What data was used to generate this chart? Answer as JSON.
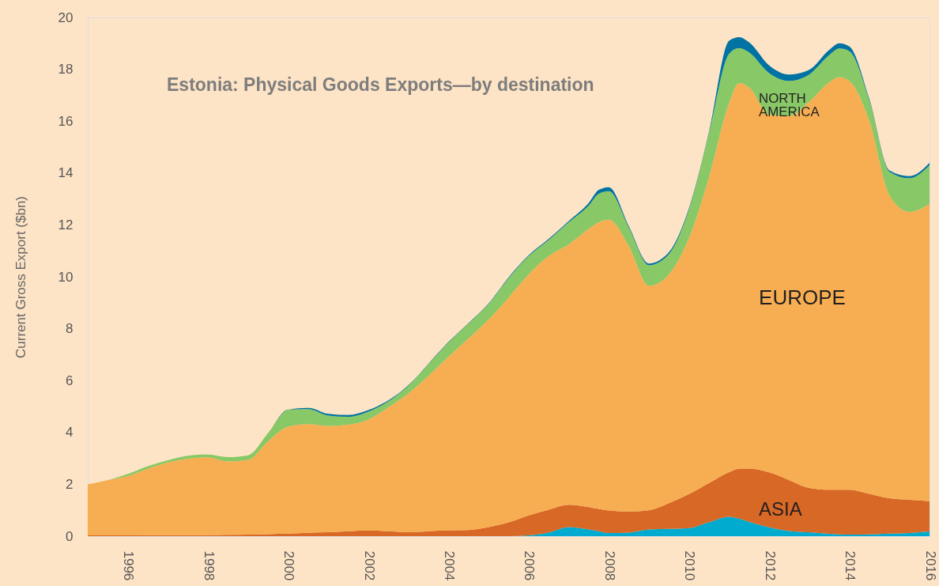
{
  "chart_data": {
    "type": "area",
    "title": "Estonia: Physical Goods Exports—by destination",
    "ylabel": "Current Gross Export ($bn)",
    "x": [
      1995,
      1995.5,
      1996,
      1996.5,
      1997,
      1997.5,
      1998,
      1998.5,
      1999,
      1999.5,
      2000,
      2000.5,
      2001,
      2001.5,
      2002,
      2002.5,
      2003,
      2003.5,
      2004,
      2004.5,
      2005,
      2005.5,
      2006,
      2006.5,
      2007,
      2007.5,
      2007.75,
      2008,
      2008.5,
      2009,
      2009.5,
      2010,
      2010.5,
      2011,
      2011.25,
      2011.5,
      2012,
      2012.5,
      2013,
      2013.5,
      2013.75,
      2014,
      2014.5,
      2015,
      2015.5,
      2016
    ],
    "xlim": [
      1995,
      2016
    ],
    "xticks": [
      1996,
      1998,
      2000,
      2002,
      2004,
      2006,
      2008,
      2010,
      2012,
      2014,
      2016
    ],
    "ylim": [
      0,
      20
    ],
    "yticks": [
      0,
      2,
      4,
      6,
      8,
      10,
      12,
      14,
      16,
      18,
      20
    ],
    "stacked": true,
    "grid": false,
    "legend": false,
    "series": [
      {
        "color": "#00abcf",
        "values": [
          0,
          0,
          0,
          0,
          0,
          0,
          0,
          0,
          0,
          0,
          0,
          0,
          0,
          0,
          0,
          0,
          0,
          0,
          0,
          0,
          0,
          0,
          0.03,
          0.14,
          0.35,
          0.26,
          0.19,
          0.12,
          0.14,
          0.26,
          0.28,
          0.31,
          0.54,
          0.75,
          0.68,
          0.56,
          0.34,
          0.2,
          0.15,
          0.09,
          0.07,
          0.06,
          0.07,
          0.1,
          0.12,
          0.18
        ]
      },
      {
        "name": "ASIA",
        "color": "#d86825",
        "values": [
          0.03,
          0.03,
          0.03,
          0.04,
          0.04,
          0.04,
          0.04,
          0.05,
          0.06,
          0.08,
          0.1,
          0.13,
          0.15,
          0.19,
          0.23,
          0.19,
          0.15,
          0.19,
          0.23,
          0.24,
          0.35,
          0.53,
          0.77,
          0.88,
          0.86,
          0.86,
          0.86,
          0.87,
          0.81,
          0.74,
          0.99,
          1.31,
          1.51,
          1.72,
          1.92,
          2.05,
          2.12,
          1.96,
          1.71,
          1.7,
          1.72,
          1.73,
          1.56,
          1.36,
          1.28,
          1.17
        ]
      },
      {
        "name": "EUROPE",
        "color": "#f7ae52",
        "values": [
          1.97,
          2.13,
          2.29,
          2.56,
          2.8,
          2.95,
          3.0,
          2.83,
          2.88,
          3.58,
          4.12,
          4.19,
          4.1,
          4.11,
          4.27,
          4.78,
          5.35,
          5.99,
          6.69,
          7.38,
          8.0,
          8.67,
          9.3,
          9.78,
          10.04,
          10.73,
          11.05,
          11.21,
          10.23,
          8.65,
          8.83,
          9.88,
          11.8,
          14.23,
          14.87,
          14.69,
          13.79,
          14.04,
          14.89,
          15.71,
          15.91,
          15.76,
          14.37,
          11.69,
          11.1,
          11.46
        ]
      },
      {
        "name": "NORTH AMERICA",
        "color": "#88c866",
        "values": [
          0,
          0,
          0.08,
          0.1,
          0.09,
          0.11,
          0.11,
          0.17,
          0.18,
          0.32,
          0.66,
          0.58,
          0.4,
          0.3,
          0.3,
          0.23,
          0.3,
          0.45,
          0.55,
          0.58,
          0.6,
          0.75,
          0.7,
          0.62,
          0.85,
          0.9,
          1.1,
          1.1,
          0.72,
          0.8,
          0.78,
          1.1,
          1.7,
          1.9,
          1.35,
          1.35,
          1.6,
          1.35,
          1.05,
          1.05,
          1.1,
          1.15,
          0.8,
          0.9,
          1.3,
          1.49
        ]
      },
      {
        "color": "#0073a3",
        "values": [
          0,
          0,
          0,
          0,
          0,
          0,
          0,
          0,
          0,
          0,
          0,
          0.05,
          0.07,
          0.07,
          0.06,
          0.04,
          0.02,
          0.02,
          0.02,
          0.02,
          0.02,
          0.03,
          0.03,
          0.04,
          0.05,
          0.1,
          0.15,
          0.15,
          0.05,
          0.06,
          0.07,
          0.05,
          0.05,
          0.5,
          0.42,
          0.39,
          0.3,
          0.25,
          0.18,
          0.2,
          0.2,
          0.18,
          0.05,
          0.05,
          0.08,
          0.09
        ]
      }
    ]
  }
}
